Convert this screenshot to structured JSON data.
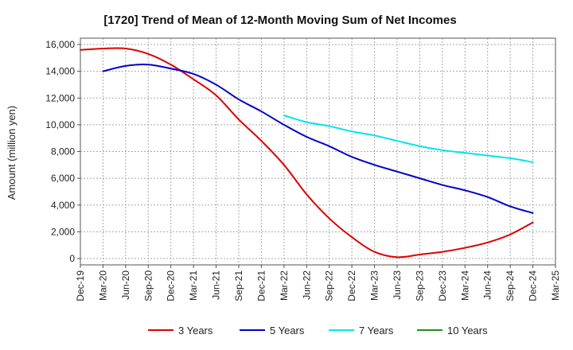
{
  "chart_data": {
    "type": "line",
    "title": "[1720]  Trend of Mean of 12-Month Moving Sum of Net Incomes",
    "xlabel": "",
    "ylabel": "Amount (million yen)",
    "ylim": [
      0,
      16000
    ],
    "yticks": [
      0,
      2000,
      4000,
      6000,
      8000,
      10000,
      12000,
      14000,
      16000
    ],
    "ytick_labels": [
      "0",
      "2,000",
      "4,000",
      "6,000",
      "8,000",
      "10,000",
      "12,000",
      "14,000",
      "16,000"
    ],
    "x_categories": [
      "Dec-19",
      "Mar-20",
      "Jun-20",
      "Sep-20",
      "Dec-20",
      "Mar-21",
      "Jun-21",
      "Sep-21",
      "Dec-21",
      "Mar-22",
      "Jun-22",
      "Sep-22",
      "Dec-22",
      "Mar-23",
      "Jun-23",
      "Sep-23",
      "Dec-23",
      "Mar-24",
      "Jun-24",
      "Sep-24",
      "Dec-24",
      "Mar-25"
    ],
    "grid": true,
    "legend_position": "bottom",
    "series": [
      {
        "name": "3 Years",
        "color": "#dd0000",
        "values": [
          15600,
          15700,
          15700,
          15300,
          14500,
          13400,
          12200,
          10400,
          8800,
          7000,
          4800,
          3000,
          1600,
          500,
          100,
          300,
          500,
          800,
          1200,
          1800,
          2700,
          null
        ]
      },
      {
        "name": "5 Years",
        "color": "#0000cc",
        "values": [
          null,
          14000,
          14400,
          14500,
          14200,
          13800,
          13000,
          11900,
          11000,
          10000,
          9100,
          8400,
          7600,
          7000,
          6500,
          6000,
          5500,
          5100,
          4600,
          3900,
          3400,
          null
        ]
      },
      {
        "name": "7 Years",
        "color": "#00e5ee",
        "values": [
          null,
          null,
          null,
          null,
          null,
          null,
          null,
          null,
          null,
          10700,
          10200,
          9900,
          9500,
          9200,
          8800,
          8400,
          8100,
          7900,
          7700,
          7500,
          7200,
          null
        ]
      },
      {
        "name": "10 Years",
        "color": "#228b22",
        "values": []
      }
    ]
  }
}
